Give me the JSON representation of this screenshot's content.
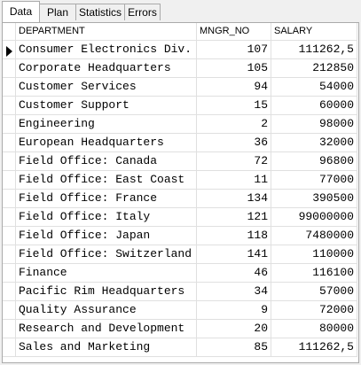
{
  "tabs": [
    "Data",
    "Plan",
    "Statistics",
    "Errors"
  ],
  "table": {
    "columns": [
      "DEPARTMENT",
      "MNGR_NO",
      "SALARY"
    ],
    "rows": [
      [
        "Consumer Electronics Div.",
        "107",
        "111262,5"
      ],
      [
        "Corporate Headquarters",
        "105",
        "212850"
      ],
      [
        "Customer Services",
        "94",
        "54000"
      ],
      [
        "Customer Support",
        "15",
        "60000"
      ],
      [
        "Engineering",
        "2",
        "98000"
      ],
      [
        "European Headquarters",
        "36",
        "32000"
      ],
      [
        "Field Office: Canada",
        "72",
        "96800"
      ],
      [
        "Field Office: East Coast",
        "11",
        "77000"
      ],
      [
        "Field Office: France",
        "134",
        "390500"
      ],
      [
        "Field Office: Italy",
        "121",
        "99000000"
      ],
      [
        "Field Office: Japan",
        "118",
        "7480000"
      ],
      [
        "Field Office: Switzerland",
        "141",
        "110000"
      ],
      [
        "Finance",
        "46",
        "116100"
      ],
      [
        "Pacific Rim Headquarters",
        "34",
        "57000"
      ],
      [
        "Quality Assurance",
        "9",
        "72000"
      ],
      [
        "Research and Development",
        "20",
        "80000"
      ],
      [
        "Sales and Marketing",
        "85",
        "111262,5"
      ]
    ]
  }
}
